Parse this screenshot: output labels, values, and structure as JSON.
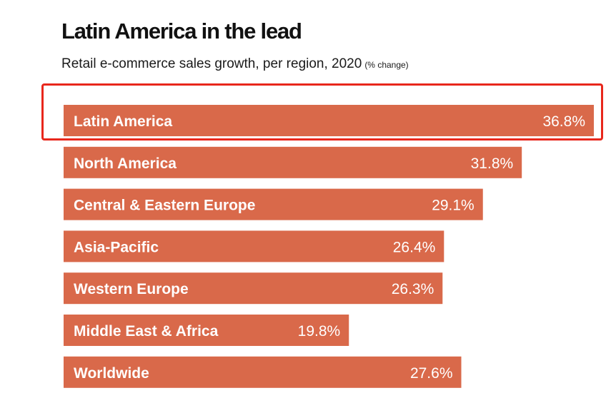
{
  "chart_data": {
    "type": "bar",
    "orientation": "horizontal",
    "title": "Latin America in the lead",
    "subtitle": "Retail e-commerce sales growth, per region, 2020",
    "unit_note": "(% change)",
    "categories": [
      "Latin America",
      "North America",
      "Central & Eastern Europe",
      "Asia-Pacific",
      "Western Europe",
      "Middle East & Africa",
      "Worldwide"
    ],
    "values": [
      36.8,
      31.8,
      29.1,
      26.4,
      26.3,
      19.8,
      27.6
    ],
    "value_labels": [
      "36.8%",
      "31.8%",
      "29.1%",
      "26.4%",
      "26.3%",
      "19.8%",
      "27.6%"
    ],
    "xlim": [
      0,
      36.8
    ],
    "grid": false,
    "bar_color": "#d9694a",
    "label_color": "#ffffff",
    "highlighted_category": "Latin America",
    "highlight_color": "#e8271c"
  }
}
